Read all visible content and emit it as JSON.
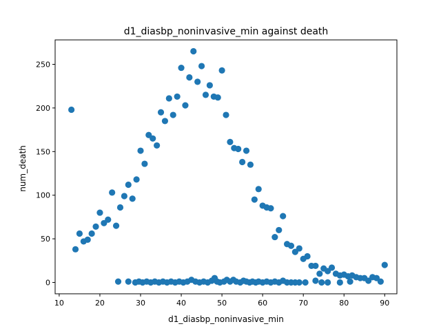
{
  "chart_data": {
    "type": "scatter",
    "title": "d1_diasbp_noninvasive_min against death",
    "xlabel": "d1_diasbp_noninvasive_min",
    "ylabel": "num_death",
    "xlim": [
      9,
      93
    ],
    "ylim": [
      -13,
      278
    ],
    "xticks": [
      10,
      20,
      30,
      40,
      50,
      60,
      70,
      80,
      90
    ],
    "yticks": [
      0,
      50,
      100,
      150,
      200,
      250
    ],
    "grid": false,
    "legend": "none",
    "marker_color": "#1f77b4",
    "series": [
      {
        "points": [
          [
            13,
            198
          ],
          [
            14,
            38
          ],
          [
            15,
            56
          ],
          [
            16,
            47
          ],
          [
            17,
            49
          ],
          [
            18,
            56
          ],
          [
            19,
            64
          ],
          [
            20,
            80
          ],
          [
            21,
            68
          ],
          [
            22,
            72
          ],
          [
            23,
            103
          ],
          [
            24,
            65
          ],
          [
            25,
            86
          ],
          [
            26,
            99
          ],
          [
            27,
            112
          ],
          [
            28,
            96
          ],
          [
            29,
            118
          ],
          [
            30,
            151
          ],
          [
            31,
            136
          ],
          [
            32,
            169
          ],
          [
            33,
            165
          ],
          [
            34,
            157
          ],
          [
            35,
            195
          ],
          [
            36,
            185
          ],
          [
            37,
            211
          ],
          [
            38,
            192
          ],
          [
            39,
            213
          ],
          [
            40,
            246
          ],
          [
            41,
            203
          ],
          [
            42,
            235
          ],
          [
            43,
            265
          ],
          [
            44,
            230
          ],
          [
            45,
            248
          ],
          [
            46,
            215
          ],
          [
            47,
            226
          ],
          [
            48,
            213
          ],
          [
            49,
            212
          ],
          [
            50,
            243
          ],
          [
            51,
            192
          ],
          [
            52,
            161
          ],
          [
            53,
            154
          ],
          [
            54,
            153
          ],
          [
            55,
            138
          ],
          [
            56,
            151
          ],
          [
            57,
            135
          ],
          [
            58,
            95
          ],
          [
            59,
            107
          ],
          [
            60,
            88
          ],
          [
            61,
            86
          ],
          [
            62,
            85
          ],
          [
            63,
            52
          ],
          [
            64,
            60
          ],
          [
            65,
            76
          ],
          [
            66,
            44
          ],
          [
            67,
            42
          ],
          [
            68,
            35
          ],
          [
            69,
            39
          ],
          [
            70,
            27
          ],
          [
            71,
            30
          ],
          [
            72,
            19
          ],
          [
            73,
            19
          ],
          [
            74,
            10
          ],
          [
            75,
            16
          ],
          [
            76,
            13
          ],
          [
            77,
            17
          ],
          [
            78,
            10
          ],
          [
            79,
            8
          ],
          [
            80,
            9
          ],
          [
            81,
            7
          ],
          [
            82,
            8
          ],
          [
            83,
            6
          ],
          [
            84,
            5
          ],
          [
            85,
            5
          ],
          [
            86,
            2
          ],
          [
            87,
            6
          ],
          [
            88,
            5
          ],
          [
            89,
            1
          ],
          [
            90,
            20
          ],
          [
            24.5,
            1
          ],
          [
            27,
            1
          ],
          [
            28.7,
            0
          ],
          [
            29.6,
            1
          ],
          [
            30.5,
            0
          ],
          [
            31.5,
            1
          ],
          [
            32.5,
            0
          ],
          [
            33.5,
            1
          ],
          [
            34.5,
            0
          ],
          [
            35.5,
            1
          ],
          [
            36.5,
            0
          ],
          [
            37.5,
            1
          ],
          [
            38.5,
            0
          ],
          [
            39.5,
            1
          ],
          [
            40.5,
            0
          ],
          [
            41.5,
            1
          ],
          [
            42.5,
            3
          ],
          [
            43.5,
            1
          ],
          [
            44.5,
            0
          ],
          [
            45.5,
            1
          ],
          [
            46.5,
            0
          ],
          [
            47.5,
            2
          ],
          [
            48.2,
            5
          ],
          [
            48.8,
            1
          ],
          [
            49.5,
            0
          ],
          [
            50.5,
            1
          ],
          [
            51.2,
            3
          ],
          [
            52,
            1
          ],
          [
            52.8,
            3
          ],
          [
            53.5,
            1
          ],
          [
            54.5,
            0
          ],
          [
            55.3,
            2
          ],
          [
            56,
            1
          ],
          [
            56.8,
            0
          ],
          [
            57.5,
            1
          ],
          [
            58.3,
            0
          ],
          [
            59,
            1
          ],
          [
            60,
            0
          ],
          [
            61,
            1
          ],
          [
            62,
            0
          ],
          [
            63,
            1
          ],
          [
            64,
            0
          ],
          [
            65,
            2
          ],
          [
            66,
            0
          ],
          [
            67,
            0
          ],
          [
            68,
            0
          ],
          [
            69,
            0
          ],
          [
            70.5,
            0
          ],
          [
            73,
            2
          ],
          [
            74.5,
            0
          ],
          [
            76,
            0
          ],
          [
            79,
            0
          ],
          [
            81.5,
            1
          ]
        ]
      }
    ]
  }
}
